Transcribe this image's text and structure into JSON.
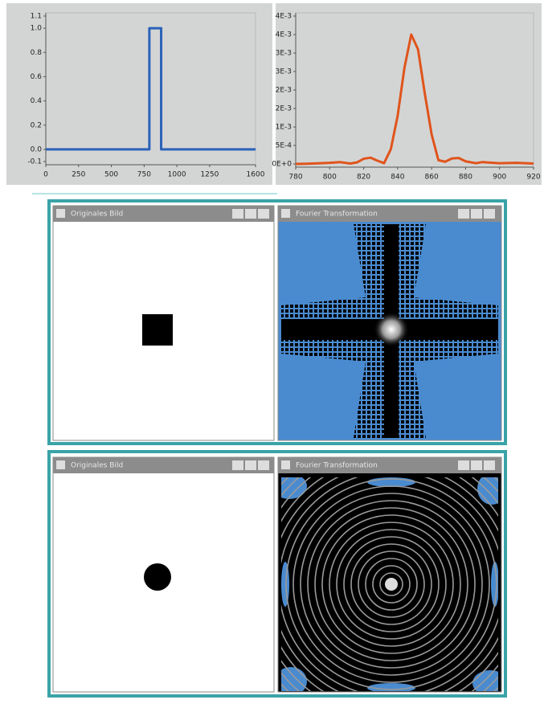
{
  "chart_data": [
    {
      "type": "line",
      "xlim": [
        0,
        1600
      ],
      "xticks": [
        0,
        250,
        500,
        750,
        1000,
        1250,
        1600
      ],
      "ylim": [
        -0.1,
        1.1
      ],
      "yticks": [
        -0.1,
        {
          "value": 0,
          "label": "0.0"
        },
        0.2,
        0.4,
        0.6,
        0.8,
        {
          "value": 1,
          "label": "1.0"
        },
        1.1
      ],
      "series": [
        {
          "color": "#2a62b8",
          "x": [
            0,
            790,
            790,
            880,
            880,
            1600
          ],
          "values": [
            0,
            0,
            1,
            1,
            0,
            0
          ]
        }
      ]
    },
    {
      "type": "line",
      "xlim": [
        780,
        920
      ],
      "xticks": [
        780,
        800,
        820,
        840,
        860,
        880,
        900,
        920
      ],
      "ylim": [
        0,
        0.004
      ],
      "yticks": [
        {
          "value": 0,
          "label": "0E+0"
        },
        {
          "value": 0.0005,
          "label": "5E-4"
        },
        {
          "value": 0.001,
          "label": "1E-3"
        },
        {
          "value": 0.0015,
          "label": "2E-3"
        },
        {
          "value": 0.002,
          "label": "2E-3"
        },
        {
          "value": 0.0025,
          "label": "3E-3"
        },
        {
          "value": 0.003,
          "label": "3E-3"
        },
        {
          "value": 0.0035,
          "label": "4E-3"
        },
        {
          "value": 0.004,
          "label": "4E-3"
        }
      ],
      "series": [
        {
          "color": "#e0541c",
          "x": [
            780,
            790,
            800,
            806,
            812,
            816,
            820,
            824,
            828,
            832,
            836,
            840,
            844,
            848,
            852,
            856,
            860,
            864,
            868,
            872,
            876,
            880,
            886,
            890,
            900,
            910,
            920
          ],
          "values": [
            0,
            1e-05,
            3e-05,
            5e-05,
            1e-05,
            4e-05,
            0.00014,
            0.00017,
            9e-05,
            2e-05,
            0.0004,
            0.0013,
            0.0026,
            0.0035,
            0.0031,
            0.0019,
            0.0008,
            0.0001,
            6e-05,
            0.00015,
            0.00016,
            7e-05,
            2e-05,
            5e-05,
            2e-05,
            3e-05,
            1e-05
          ]
        }
      ]
    }
  ],
  "windows": [
    {
      "title": "Originales Bild"
    },
    {
      "title": "Fourier Transformation"
    },
    {
      "title": "Originales Bild"
    },
    {
      "title": "Fourier Transformation"
    }
  ]
}
